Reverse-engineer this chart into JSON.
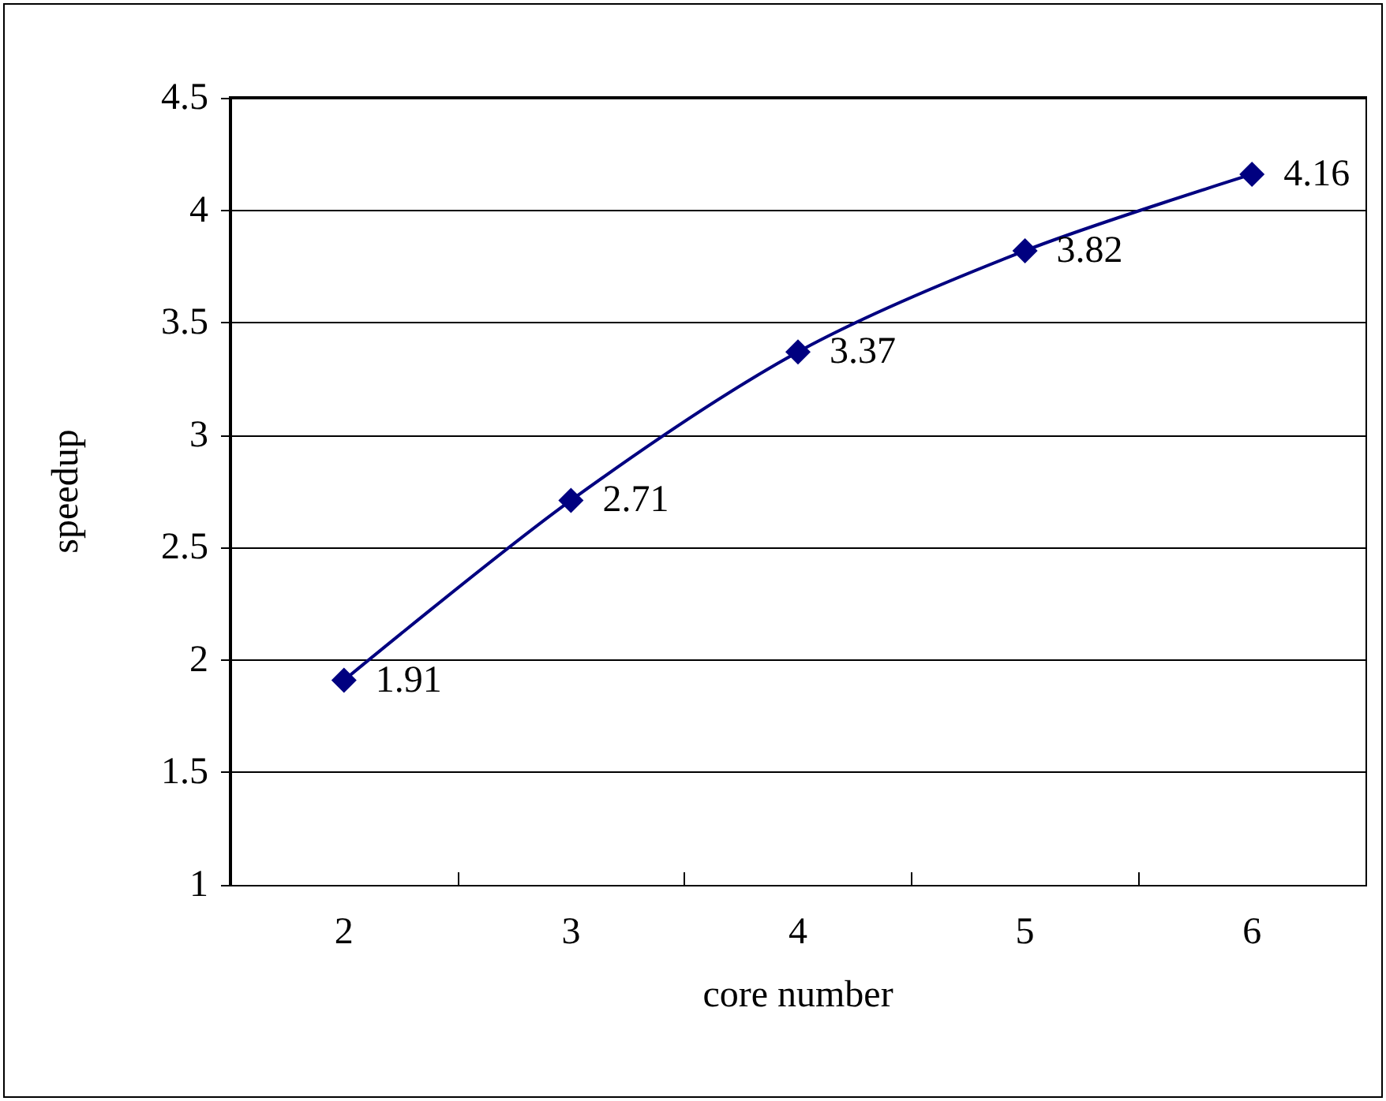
{
  "chart_data": {
    "type": "line",
    "xlabel": "core number",
    "ylabel": "speedup",
    "categories": [
      "2",
      "3",
      "4",
      "5",
      "6"
    ],
    "series": [
      {
        "color": "#000080",
        "values": [
          1.91,
          2.71,
          3.37,
          3.82,
          4.16
        ]
      }
    ],
    "ylim": [
      1,
      4.5
    ],
    "yticks": [
      1,
      1.5,
      2,
      2.5,
      3,
      3.5,
      4,
      4.5
    ],
    "grid": "y",
    "marker": "diamond",
    "line_style": "solid",
    "data_labels": true
  }
}
